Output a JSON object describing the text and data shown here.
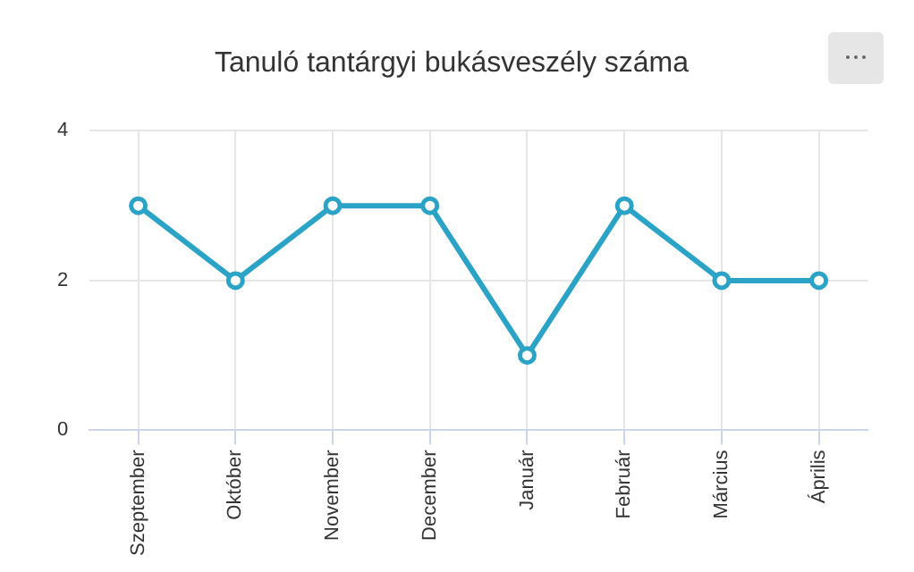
{
  "chart_data": {
    "type": "line",
    "title": "Tanuló tantárgyi bukásveszély száma",
    "categories": [
      "Szeptember",
      "Október",
      "November",
      "December",
      "Január",
      "Február",
      "Március",
      "Április"
    ],
    "series": [
      {
        "color": "#2ba3c6",
        "values": [
          3,
          2,
          3,
          3,
          1,
          3,
          2,
          2
        ]
      }
    ],
    "ylim": [
      0,
      4
    ],
    "yticks": [
      0,
      2,
      4
    ],
    "grid": true,
    "legend": false,
    "marker": "circle",
    "line_style": "solid"
  }
}
